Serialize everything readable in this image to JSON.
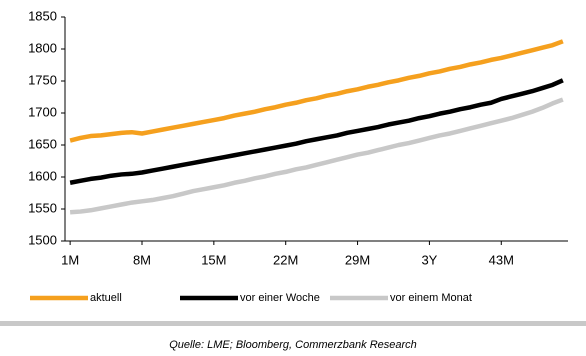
{
  "chart_data": {
    "type": "line",
    "categories": [
      "1M",
      null,
      null,
      null,
      null,
      null,
      null,
      "8M",
      null,
      null,
      null,
      null,
      null,
      null,
      "15M",
      null,
      null,
      null,
      null,
      null,
      null,
      "22M",
      null,
      null,
      null,
      null,
      null,
      null,
      "29M",
      null,
      null,
      null,
      null,
      null,
      null,
      "3Y",
      null,
      null,
      null,
      null,
      null,
      null,
      "43M",
      null,
      null,
      null,
      null,
      null,
      null
    ],
    "series": [
      {
        "name": "aktuell",
        "color": "#f5a01e",
        "values": [
          1657,
          1661,
          1664,
          1665,
          1667,
          1669,
          1670,
          1668,
          1671,
          1674,
          1677,
          1680,
          1683,
          1686,
          1689,
          1692,
          1696,
          1699,
          1702,
          1706,
          1709,
          1713,
          1716,
          1720,
          1723,
          1727,
          1730,
          1734,
          1737,
          1741,
          1744,
          1748,
          1751,
          1755,
          1758,
          1762,
          1765,
          1769,
          1772,
          1776,
          1779,
          1783,
          1786,
          1790,
          1794,
          1798,
          1802,
          1806,
          1812
        ]
      },
      {
        "name": "vor einer Woche",
        "color": "#000000",
        "values": [
          1591,
          1594,
          1597,
          1599,
          1602,
          1604,
          1605,
          1607,
          1610,
          1613,
          1616,
          1619,
          1622,
          1625,
          1628,
          1631,
          1634,
          1637,
          1640,
          1643,
          1646,
          1649,
          1652,
          1656,
          1659,
          1662,
          1665,
          1669,
          1672,
          1675,
          1678,
          1682,
          1685,
          1688,
          1692,
          1695,
          1699,
          1702,
          1706,
          1709,
          1713,
          1716,
          1722,
          1726,
          1730,
          1734,
          1739,
          1744,
          1751
        ]
      },
      {
        "name": "vor einem Monat",
        "color": "#c8c8c8",
        "values": [
          1545,
          1546,
          1548,
          1551,
          1554,
          1557,
          1560,
          1562,
          1564,
          1567,
          1570,
          1574,
          1578,
          1581,
          1584,
          1587,
          1591,
          1594,
          1598,
          1601,
          1605,
          1608,
          1612,
          1615,
          1619,
          1623,
          1627,
          1631,
          1635,
          1638,
          1642,
          1646,
          1650,
          1653,
          1657,
          1661,
          1665,
          1668,
          1672,
          1676,
          1680,
          1684,
          1688,
          1692,
          1697,
          1702,
          1708,
          1715,
          1721
        ]
      }
    ],
    "ylim": [
      1500,
      1850
    ],
    "yticks": [
      1500,
      1550,
      1600,
      1650,
      1700,
      1750,
      1800,
      1850
    ],
    "source": "Quelle: LME; Bloomberg, Commerzbank Research"
  }
}
